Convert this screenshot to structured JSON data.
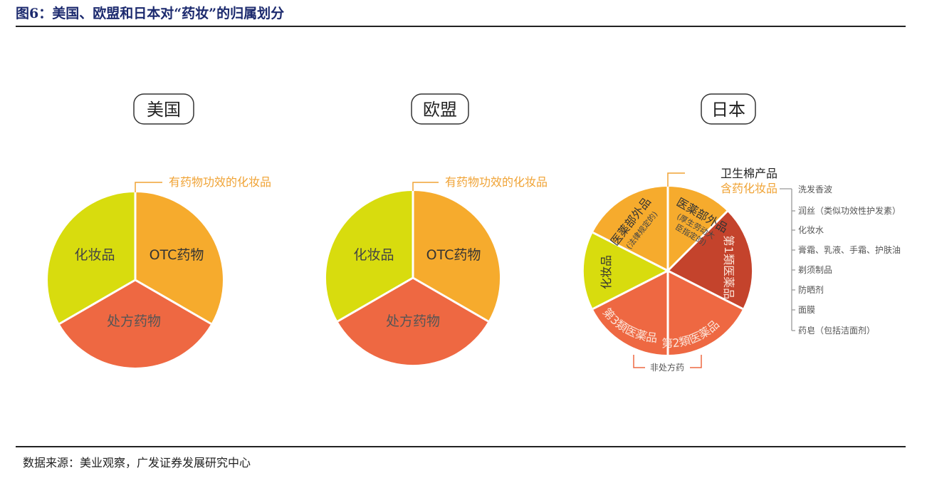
{
  "figure": {
    "title": "图6：美国、欧盟和日本对“药妆”的归属划分",
    "source": "数据来源：美业观察，广发证券发展研究中心"
  },
  "usa": {
    "heading": "美国",
    "callout": "有药物功效的化妆品",
    "labels": [
      "OTC药物",
      "处方药物",
      "化妆品"
    ]
  },
  "eu": {
    "heading": "欧盟",
    "callout": "有药物功效的化妆品",
    "labels": [
      "OTC药物",
      "处方药物",
      "化妆品"
    ]
  },
  "japan": {
    "heading": "日本",
    "top_label_1": "卫生棉产品",
    "top_label_2": "含药化妆品",
    "seg_quasi_drug_a": "医薬部外品",
    "seg_quasi_drug_a_sub": "(法律规定的)",
    "seg_quasi_drug_b": "医薬部外品",
    "seg_quasi_drug_b_sub1": "(厚生劳动大",
    "seg_quasi_drug_b_sub2": "臣指定的)",
    "seg_class1": "第1類医薬品",
    "seg_class2": "第2類医薬品",
    "seg_class3": "第3類医薬品",
    "seg_cosmetics": "化妆品",
    "non_rx_label": "非处方药",
    "list": [
      "洗发香波",
      "润丝（类似功效性护发素）",
      "化妆水",
      "膏霜、乳液、手霜、护肤油",
      "剃须制品",
      "防晒剂",
      "面膜",
      "药皂（包括洁面剂）"
    ]
  },
  "colors": {
    "yellow_green": "#d8dc0e",
    "orange": "#f6ab2d",
    "red_orange": "#ee6842",
    "dark_red": "#c4432c",
    "callout": "#f0a335",
    "title_blue": "#1c2a6e"
  }
}
